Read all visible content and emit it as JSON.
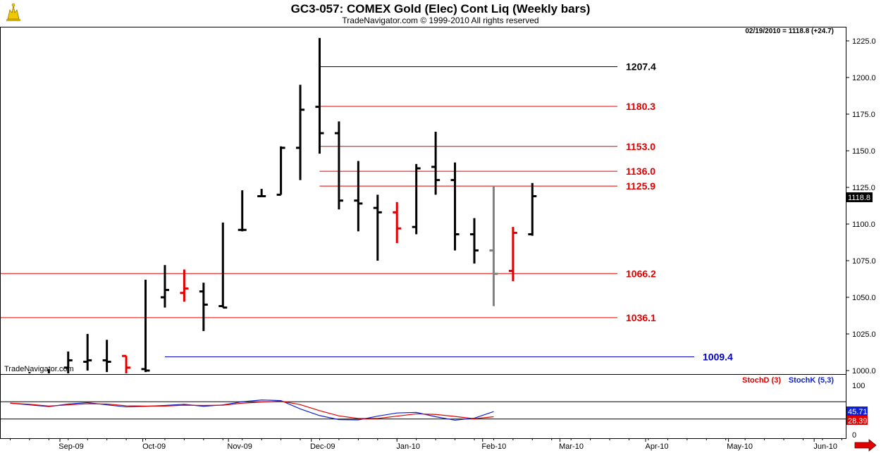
{
  "header": {
    "title": "GC3-057:  COMEX Gold (Elec) Cont Liq  (Weekly bars)",
    "subtitle": "TradeNavigator.com © 1999-2010 All rights reserved"
  },
  "last_bar_info": "02/19/2010 = 1118.8 (+24.7)",
  "watermark": "TradeNavigator.com",
  "last_price_tag": "1118.8",
  "arrow_icon": "right-arrow-icon",
  "colors": {
    "up_bar": "#000000",
    "down_bar": "#e00000",
    "neutral_bar": "#808080",
    "red_level": "#e00000",
    "black_level": "#000000",
    "blue_level": "#0000c0",
    "stochK": "#1020d0",
    "stochD": "#e00000"
  },
  "chart_data": [
    {
      "type": "ohlc",
      "ylim": [
        995,
        1230
      ],
      "y_ticks": [
        "1000.0",
        "1025.0",
        "1050.0",
        "1075.0",
        "1100.0",
        "1125.0",
        "1150.0",
        "1175.0",
        "1200.0",
        "1225.0"
      ],
      "x_month_labels": [
        "Sep-09",
        "Oct-09",
        "Nov-09",
        "Dec-09",
        "Jan-10",
        "Feb-10",
        "Mar-10",
        "Apr-10",
        "May-10",
        "Jun-10"
      ],
      "bars": [
        {
          "date": "2009-08-21",
          "o": 994,
          "h": 999,
          "l": 990,
          "c": 995,
          "color": "up"
        },
        {
          "date": "2009-08-28",
          "o": 996,
          "h": 1001,
          "l": 990,
          "c": 993,
          "color": "up"
        },
        {
          "date": "2009-09-04",
          "o": 1002,
          "h": 1013,
          "l": 998,
          "c": 1007,
          "color": "up"
        },
        {
          "date": "2009-09-11",
          "o": 1006,
          "h": 1025,
          "l": 1000,
          "c": 1007,
          "color": "up"
        },
        {
          "date": "2009-09-18",
          "o": 1007,
          "h": 1021,
          "l": 999,
          "c": 1006,
          "color": "up"
        },
        {
          "date": "2009-09-25",
          "o": 1010,
          "h": 1010,
          "l": 992,
          "c": 1002,
          "color": "down"
        },
        {
          "date": "2009-10-02",
          "o": 1001,
          "h": 1062,
          "l": 999,
          "c": 1000,
          "color": "up"
        },
        {
          "date": "2009-10-09",
          "o": 1050,
          "h": 1072,
          "l": 1043,
          "c": 1055,
          "color": "up"
        },
        {
          "date": "2009-10-16",
          "o": 1053,
          "h": 1069,
          "l": 1047,
          "c": 1056,
          "color": "down"
        },
        {
          "date": "2009-10-23",
          "o": 1054,
          "h": 1060,
          "l": 1027,
          "c": 1045,
          "color": "up"
        },
        {
          "date": "2009-10-30",
          "o": 1044,
          "h": 1101,
          "l": 1043,
          "c": 1043,
          "color": "up"
        },
        {
          "date": "2009-11-06",
          "o": 1096,
          "h": 1123,
          "l": 1095,
          "c": 1096,
          "color": "up"
        },
        {
          "date": "2009-11-13",
          "o": 1119,
          "h": 1124,
          "l": 1119,
          "c": 1119,
          "color": "up"
        },
        {
          "date": "2009-11-20",
          "o": 1120,
          "h": 1153,
          "l": 1120,
          "c": 1152,
          "color": "up"
        },
        {
          "date": "2009-11-27",
          "o": 1152,
          "h": 1195,
          "l": 1130,
          "c": 1178,
          "color": "up"
        },
        {
          "date": "2009-12-04",
          "o": 1180,
          "h": 1227,
          "l": 1148,
          "c": 1162,
          "color": "up"
        },
        {
          "date": "2009-12-11",
          "o": 1162,
          "h": 1170,
          "l": 1110,
          "c": 1116,
          "color": "up"
        },
        {
          "date": "2009-12-18",
          "o": 1116,
          "h": 1143,
          "l": 1095,
          "c": 1114,
          "color": "up"
        },
        {
          "date": "2009-12-25",
          "o": 1111,
          "h": 1120,
          "l": 1075,
          "c": 1108,
          "color": "up"
        },
        {
          "date": "2010-01-01",
          "o": 1108,
          "h": 1115,
          "l": 1087,
          "c": 1097,
          "color": "down"
        },
        {
          "date": "2010-01-08",
          "o": 1098,
          "h": 1141,
          "l": 1093,
          "c": 1138,
          "color": "up"
        },
        {
          "date": "2010-01-15",
          "o": 1139,
          "h": 1163,
          "l": 1120,
          "c": 1130,
          "color": "up"
        },
        {
          "date": "2010-01-22",
          "o": 1130,
          "h": 1142,
          "l": 1082,
          "c": 1093,
          "color": "up"
        },
        {
          "date": "2010-01-29",
          "o": 1093,
          "h": 1104,
          "l": 1073,
          "c": 1082,
          "color": "up"
        },
        {
          "date": "2010-02-05",
          "o": 1082,
          "h": 1126,
          "l": 1044,
          "c": 1066,
          "color": "neutral"
        },
        {
          "date": "2010-02-12",
          "o": 1068,
          "h": 1098,
          "l": 1061,
          "c": 1094,
          "color": "down"
        },
        {
          "date": "2010-02-19",
          "o": 1093,
          "h": 1128,
          "l": 1092,
          "c": 1119,
          "color": "up"
        }
      ],
      "levels": [
        {
          "value": 1207.4,
          "label": "1207.4",
          "color": "black",
          "from": "2009-12-04"
        },
        {
          "value": 1180.3,
          "label": "1180.3",
          "color": "red",
          "from": "2009-12-04"
        },
        {
          "value": 1153.0,
          "label": "1153.0",
          "color": "red",
          "from": "2009-12-04"
        },
        {
          "value": 1136.0,
          "label": "1136.0",
          "color": "red",
          "from": "2009-12-04"
        },
        {
          "value": 1125.9,
          "label": "1125.9",
          "color": "red",
          "from": "2009-12-04"
        },
        {
          "value": 1066.2,
          "label": "1066.2",
          "color": "red",
          "from": "start"
        },
        {
          "value": 1036.1,
          "label": "1036.1",
          "color": "red",
          "from": "start"
        },
        {
          "value": 1009.4,
          "label": "1009.4",
          "color": "blue",
          "from": "2009-10-09"
        }
      ]
    },
    {
      "type": "line",
      "legend": [
        "StochD (3)",
        "StochK (5,3)"
      ],
      "ylim": [
        0,
        100
      ],
      "y_ticks": [
        "100",
        "0"
      ],
      "reference_lines": [
        80,
        20
      ],
      "value_labels": {
        "stochK": "45.71",
        "stochD": "28.39"
      },
      "series": [
        {
          "name": "StochK (5,3)",
          "values": [
            75,
            69,
            63,
            72,
            77,
            69,
            62,
            64,
            67,
            71,
            64,
            69,
            80,
            86,
            84,
            55,
            32,
            18,
            17,
            30,
            41,
            43,
            28,
            16,
            23,
            46
          ]
        },
        {
          "name": "StochD (3)",
          "values": [
            75,
            71,
            65,
            69,
            73,
            72,
            66,
            65,
            65,
            68,
            67,
            68,
            75,
            79,
            82,
            70,
            49,
            31,
            22,
            22,
            30,
            38,
            36,
            29,
            21,
            28
          ]
        }
      ]
    }
  ]
}
